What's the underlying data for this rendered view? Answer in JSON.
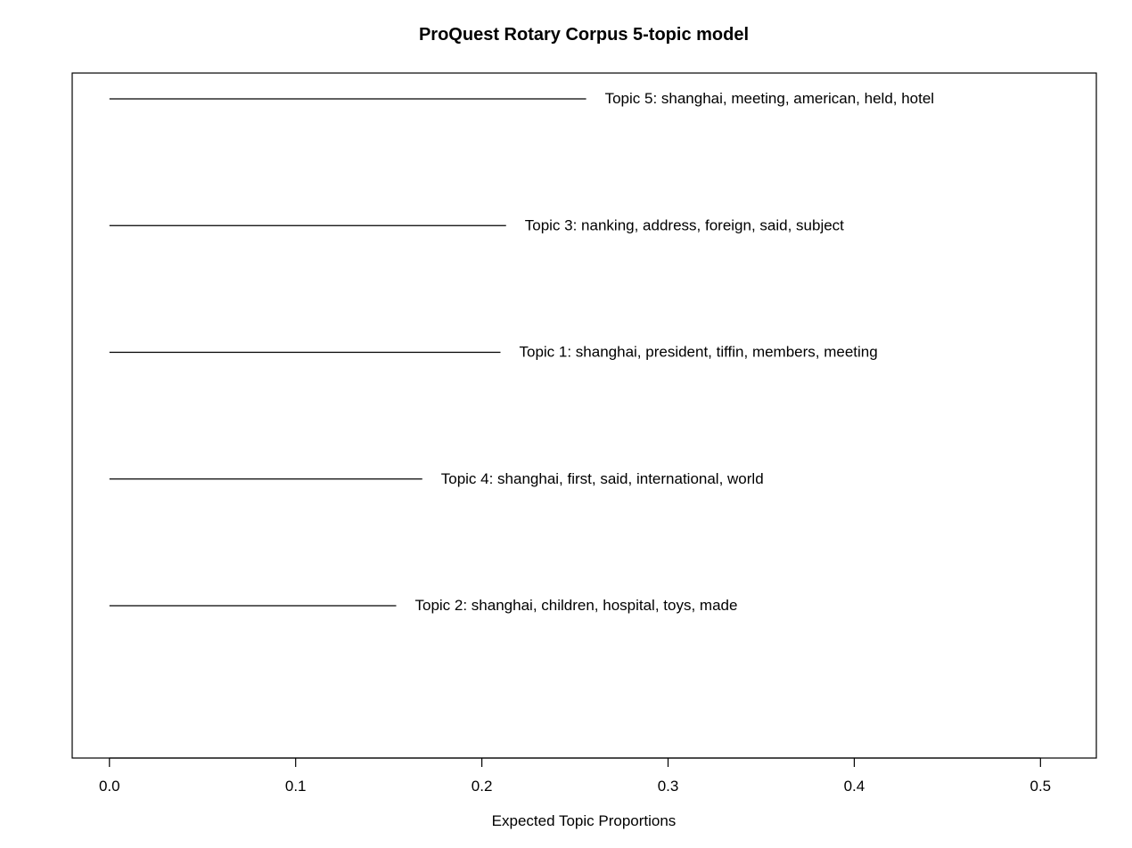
{
  "chart_data": {
    "type": "bar",
    "title": "ProQuest Rotary Corpus 5-topic model",
    "xlabel": "Expected Topic Proportions",
    "ylabel": "",
    "xlim": [
      -0.02,
      0.53
    ],
    "x_ticks": [
      "0.0",
      "0.1",
      "0.2",
      "0.3",
      "0.4",
      "0.5"
    ],
    "x_tick_values": [
      0,
      0.1,
      0.2,
      0.3,
      0.4,
      0.5
    ],
    "orientation": "horizontal",
    "grid": false,
    "legend": "none",
    "bars": [
      {
        "label": "Topic 5: shanghai, meeting, american, held, hotel",
        "value": 0.256
      },
      {
        "label": "Topic 3: nanking, address, foreign, said, subject",
        "value": 0.213
      },
      {
        "label": "Topic 1: shanghai, president, tiffin, members, meeting",
        "value": 0.21
      },
      {
        "label": "Topic 4: shanghai, first, said, international, world",
        "value": 0.168
      },
      {
        "label": "Topic 2: shanghai, children, hospital, toys, made",
        "value": 0.154
      }
    ],
    "colors": {
      "line": "#000000",
      "background": "#ffffff"
    }
  }
}
